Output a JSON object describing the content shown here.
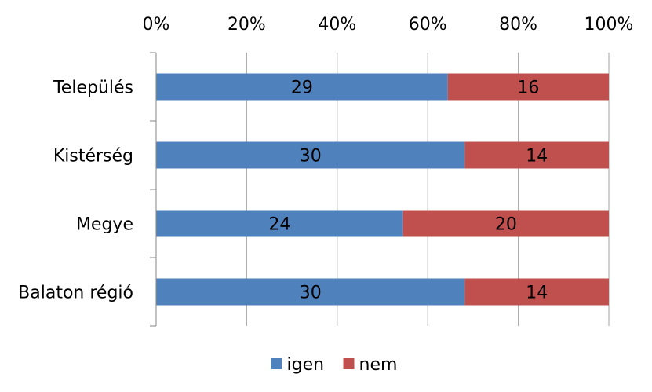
{
  "chart_data": {
    "type": "bar",
    "orientation": "horizontal",
    "stacked": "percent",
    "categories": [
      "Település",
      "Kistérség",
      "Megye",
      "Balaton régió"
    ],
    "series": [
      {
        "name": "igen",
        "values": [
          29,
          30,
          24,
          30
        ],
        "color": "#4f81bd"
      },
      {
        "name": "nem",
        "values": [
          16,
          14,
          20,
          14
        ],
        "color": "#c0504d"
      }
    ],
    "x_ticks": [
      "0%",
      "20%",
      "40%",
      "60%",
      "80%",
      "100%"
    ],
    "xlim": [
      0,
      100
    ],
    "x_axis_position": "top",
    "grid": true,
    "legend": "bottom"
  }
}
